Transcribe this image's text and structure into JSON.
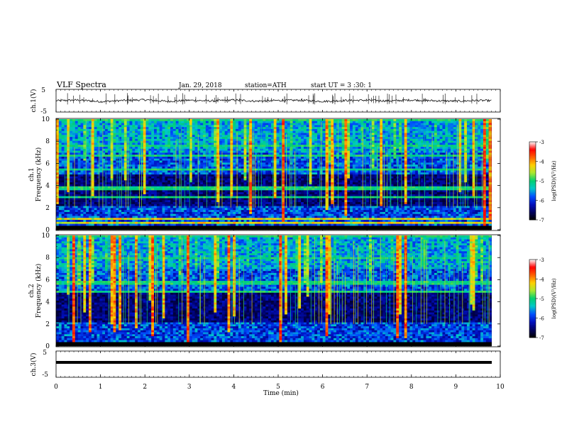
{
  "header": {
    "title": "VLF Spectra",
    "date": "Jan. 29, 2018",
    "station": "station=ATH",
    "start_ut": "start UT =  3 :30: 1"
  },
  "chart_data": [
    {
      "type": "line",
      "panel": "ch.1 waveform",
      "ylabel": "ch.1(V)",
      "ylim": [
        -5,
        5
      ],
      "yticks": [
        "5",
        "-5"
      ],
      "xlim": [
        0,
        10
      ],
      "series": [
        {
          "x": [
            0,
            0.5,
            1,
            1.5,
            2,
            2.5,
            3,
            3.5,
            4,
            4.5,
            5,
            5.5,
            6,
            6.5,
            7,
            7.5,
            8,
            8.5,
            9,
            9.5,
            9.8
          ],
          "values": [
            0,
            0.3,
            -0.4,
            0.1,
            0.4,
            -0.3,
            0.2,
            -0.1,
            0.3,
            -0.2,
            0.1,
            0.2,
            -0.3,
            0.1,
            0.2,
            -0.1,
            0.3,
            0,
            -0.2,
            0.1,
            0
          ]
        }
      ],
      "color": "#000000"
    },
    {
      "type": "heatmap",
      "panel": "ch.1 spectrogram",
      "ylabel_top": "ch.1",
      "ylabel": "Frequency (kHz)",
      "ylim": [
        0,
        10
      ],
      "yticks": [
        "0",
        "2",
        "4",
        "6",
        "8",
        "10"
      ],
      "xlim": [
        0,
        9.8
      ],
      "colorbar": {
        "label": "log(PSD)(V²/Hz)",
        "range": [
          -7,
          -3
        ],
        "ticks": [
          "-3",
          "-4",
          "-5",
          "-6",
          "-7"
        ]
      },
      "note": "broadband impulsive energy at -4 to -6; background -6 to -7 between 2 and 5 kHz; narrowband lines near 0.5 kHz"
    },
    {
      "type": "heatmap",
      "panel": "ch.2 spectrogram",
      "ylabel_top": "ch.2",
      "ylabel": "Frequency (kHz)",
      "ylim": [
        0,
        10
      ],
      "yticks": [
        "0",
        "2",
        "4",
        "6",
        "8",
        "10"
      ],
      "xlim": [
        0,
        9.8
      ],
      "colorbar": {
        "label": "log(PSD)(V²/Hz)",
        "range": [
          -7,
          -3
        ],
        "ticks": [
          "-3",
          "-4",
          "-5",
          "-6",
          "-7"
        ]
      }
    },
    {
      "type": "line",
      "panel": "ch.3 waveform",
      "ylabel": "ch.3(V)",
      "ylim": [
        -5,
        5
      ],
      "yticks": [
        "5",
        "-5"
      ],
      "xlim": [
        0,
        10
      ],
      "series": [
        {
          "x": [
            0,
            9.8
          ],
          "values": [
            -0.5,
            -0.5
          ]
        }
      ],
      "color": "#000000"
    }
  ],
  "xaxis": {
    "label": "Time (min)",
    "ticks": [
      "0",
      "1",
      "2",
      "3",
      "4",
      "5",
      "6",
      "7",
      "8",
      "9",
      "10"
    ],
    "range": [
      0,
      10
    ]
  },
  "colors": {
    "colormap": [
      "#000000",
      "#000060",
      "#0010c0",
      "#0050ff",
      "#00c8c8",
      "#00d070",
      "#a8e830",
      "#ffd000",
      "#ff6000",
      "#ff0000",
      "#ffffff"
    ]
  }
}
